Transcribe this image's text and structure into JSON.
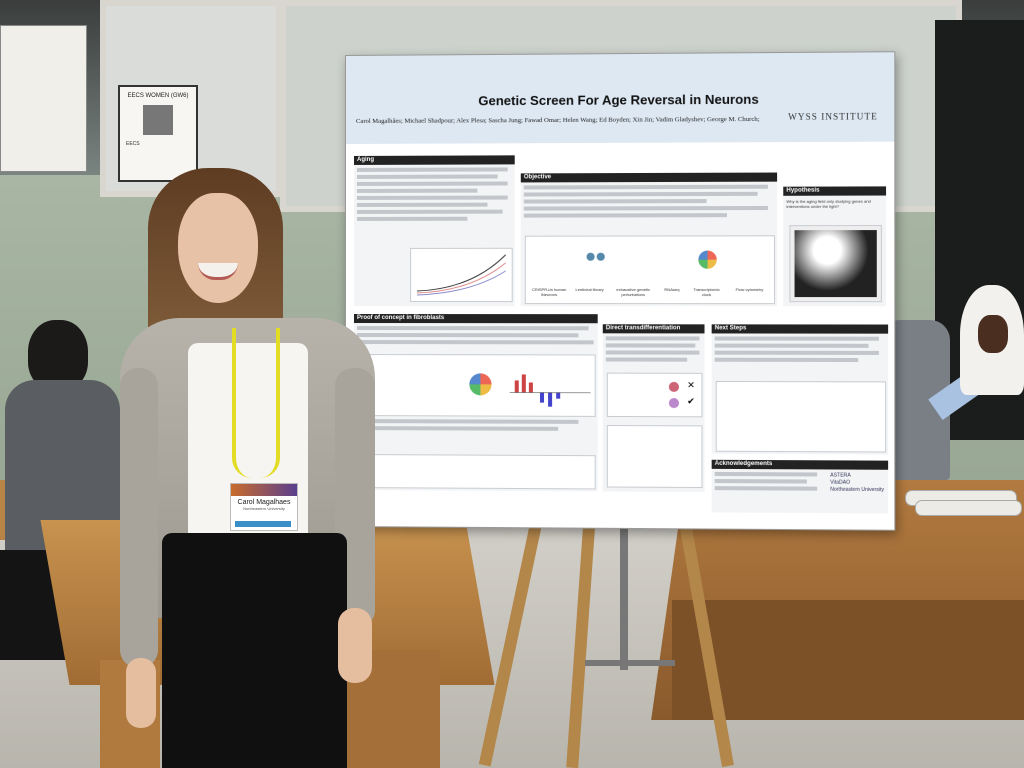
{
  "poster": {
    "title": "Genetic Screen For Age Reversal in Neurons",
    "authors": "Carol Magalhães; Michael Shadpour; Alex Plesa; Sascha Jung; Fawad Omar; Helen Wang; Ed Boyden; Xin Jin; Vadim Gladyshev; George M. Church;",
    "institute": "WYSS INSTITUTE",
    "sections": {
      "aging": "Aging",
      "objective": "Objective",
      "hypothesis": "Hypothesis",
      "proof": "Proof of concept in fibroblasts",
      "direct": "Direct transdifferentiation",
      "next": "Next Steps",
      "ack": "Acknowledgements"
    },
    "hypothesis_text": "Why is the aging field only studying genes and interventions under the light?",
    "pipeline": {
      "step1": "CRISPR-i/a human iNeurons",
      "step2": "Lentiviral library",
      "step3": "exhaustive genetic perturbations",
      "step4": "RNAseq",
      "step5": "Transcriptomic clock",
      "step6": "Flow cytometry"
    },
    "ack_logos": [
      "ASTERA",
      "VitaDAO",
      "Northeastern University"
    ]
  },
  "badge": {
    "name": "Carol Magalhaes",
    "affiliation": "Northeastern University"
  },
  "flyer": {
    "title": "EECS WOMEN (GW6)",
    "footer": "EECS"
  }
}
